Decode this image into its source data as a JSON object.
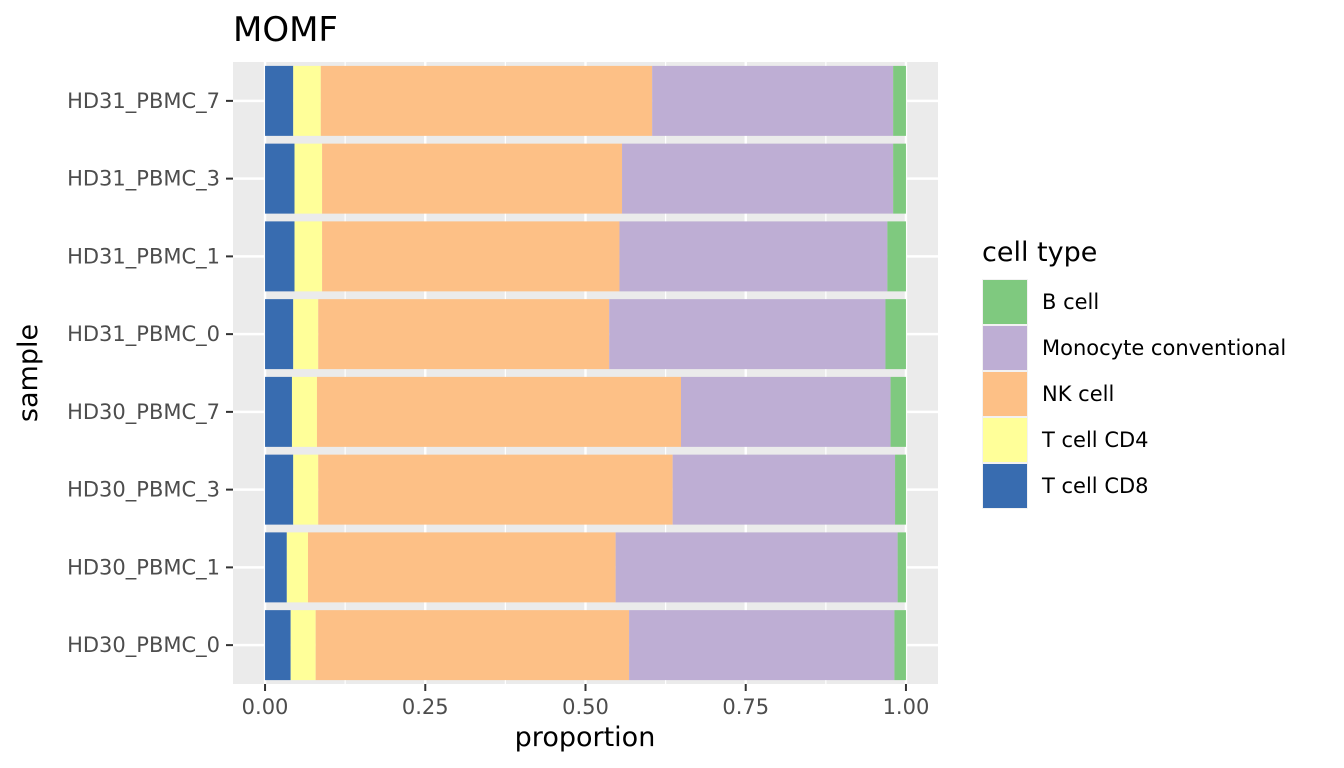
{
  "chart_data": {
    "type": "bar",
    "orientation": "horizontal",
    "stacked": true,
    "title": "MOMF",
    "xlabel": "proportion",
    "ylabel": "sample",
    "xlim": [
      -0.05,
      1.05
    ],
    "xticks": [
      0,
      0.25,
      0.5,
      0.75,
      1
    ],
    "xtick_labels": [
      "0.00",
      "0.25",
      "0.50",
      "0.75",
      "1.00"
    ],
    "grid": true,
    "categories": [
      "HD30_PBMC_0",
      "HD30_PBMC_1",
      "HD30_PBMC_3",
      "HD30_PBMC_7",
      "HD31_PBMC_0",
      "HD31_PBMC_1",
      "HD31_PBMC_3",
      "HD31_PBMC_7"
    ],
    "series": [
      {
        "name": "T cell CD8",
        "color": "#386CB0",
        "values": [
          0.04,
          0.034,
          0.044,
          0.042,
          0.044,
          0.046,
          0.046,
          0.044
        ]
      },
      {
        "name": "T cell CD4",
        "color": "#FFFF99",
        "values": [
          0.039,
          0.033,
          0.039,
          0.039,
          0.039,
          0.043,
          0.043,
          0.043
        ]
      },
      {
        "name": "NK cell",
        "color": "#FDC086",
        "values": [
          0.489,
          0.48,
          0.553,
          0.568,
          0.454,
          0.464,
          0.468,
          0.517
        ]
      },
      {
        "name": "Monocyte conventional",
        "color": "#BEAED4",
        "values": [
          0.414,
          0.44,
          0.347,
          0.327,
          0.431,
          0.418,
          0.423,
          0.376
        ]
      },
      {
        "name": "B cell",
        "color": "#7FC97F",
        "values": [
          0.018,
          0.013,
          0.017,
          0.024,
          0.032,
          0.029,
          0.02,
          0.02
        ]
      }
    ],
    "legend": {
      "title": "cell type",
      "placement": "right",
      "order": [
        "B cell",
        "Monocyte conventional",
        "NK cell",
        "T cell CD4",
        "T cell CD8"
      ]
    }
  }
}
